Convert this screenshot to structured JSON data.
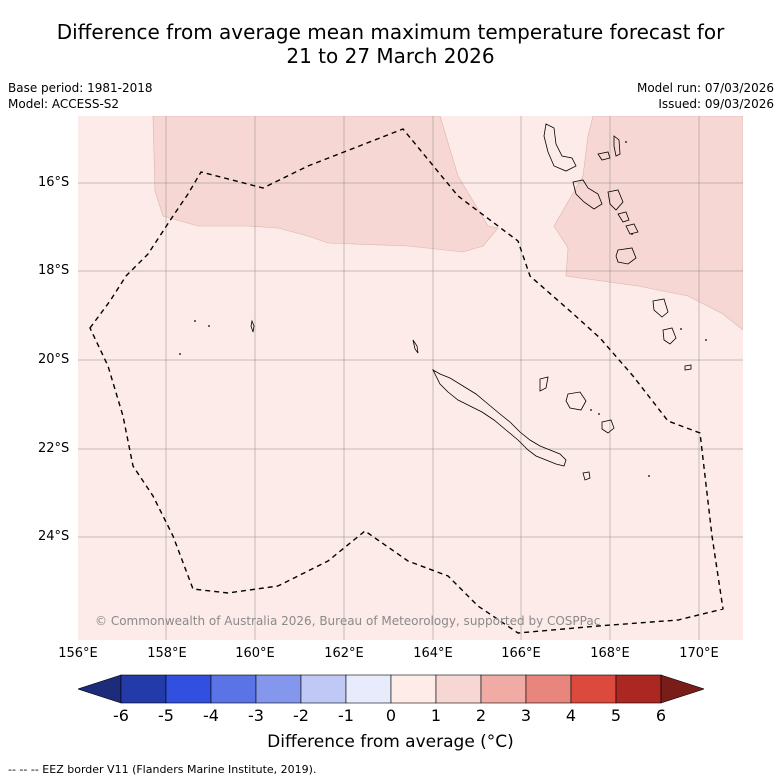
{
  "title_line1": "Difference from average mean maximum temperature forecast for",
  "title_line2": "21 to 27 March 2026",
  "base_period": "Base period: 1981-2018",
  "model": "Model: ACCESS-S2",
  "model_run": "Model run: 07/03/2026",
  "issued": "Issued: 09/03/2026",
  "lat_labels": [
    "16°S",
    "18°S",
    "20°S",
    "22°S",
    "24°S"
  ],
  "lon_labels": [
    "156°E",
    "158°E",
    "160°E",
    "162°E",
    "164°E",
    "166°E",
    "168°E",
    "170°E"
  ],
  "copyright": "© Commonwealth of Australia 2026, Bureau of Meteorology, supported by COSPPac",
  "colorbar": {
    "ticks": [
      "-6",
      "-5",
      "-4",
      "-3",
      "-2",
      "-1",
      "0",
      "1",
      "2",
      "3",
      "4",
      "5",
      "6"
    ],
    "colors": [
      "#233ba8",
      "#3150e0",
      "#5a74e6",
      "#8497ec",
      "#c0c8f5",
      "#e8ebfb",
      "#fdece8",
      "#f7d7d3",
      "#f0aba4",
      "#e8867e",
      "#dc4a3e",
      "#ab2721"
    ],
    "low_end_color": "#1c2c7a",
    "high_end_color": "#7a1c18",
    "label": "Difference from average (°C)"
  },
  "map_colors": {
    "background_class": "#fcebe8",
    "warm_class": "#f7d7d3"
  },
  "footnote": "--  --  -- EEZ border V11 (Flanders Marine Institute, 2019)."
}
